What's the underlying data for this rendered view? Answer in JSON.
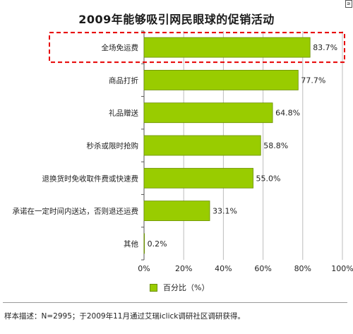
{
  "chart_data": {
    "type": "bar",
    "orientation": "horizontal",
    "title": "2009年能够吸引网民眼球的促销活动",
    "categories": [
      "全场免运费",
      "商品打折",
      "礼品赠送",
      "秒杀或限时抢购",
      "退换货时免收取件费或快速费",
      "承诺在一定时间内送达，否则退还运费",
      "其他"
    ],
    "series": [
      {
        "name": "百分比（%）",
        "values": [
          83.7,
          77.7,
          64.8,
          58.8,
          55.0,
          33.1,
          0.2
        ]
      }
    ],
    "value_labels": [
      "83.7%",
      "77.7%",
      "64.8%",
      "58.8%",
      "55.0%",
      "33.1%",
      "0.2%"
    ],
    "x_ticks": [
      0,
      20,
      40,
      60,
      80,
      100
    ],
    "x_tick_labels": [
      "0%",
      "20%",
      "40%",
      "60%",
      "80%",
      "100%"
    ],
    "xlim": [
      0,
      100
    ],
    "grid": "vertical",
    "legend_position": "bottom",
    "highlight_category": "全场免运费",
    "colors": {
      "bar_fill": "#99cc00",
      "bar_stroke": "#6a8f00",
      "highlight": "#e60000",
      "grid": "#bdbdbd"
    }
  },
  "corner_mark": "≥",
  "footnote": "样本描述：N=2995；于2009年11月通过艾瑞iclick调研社区调研获得。"
}
